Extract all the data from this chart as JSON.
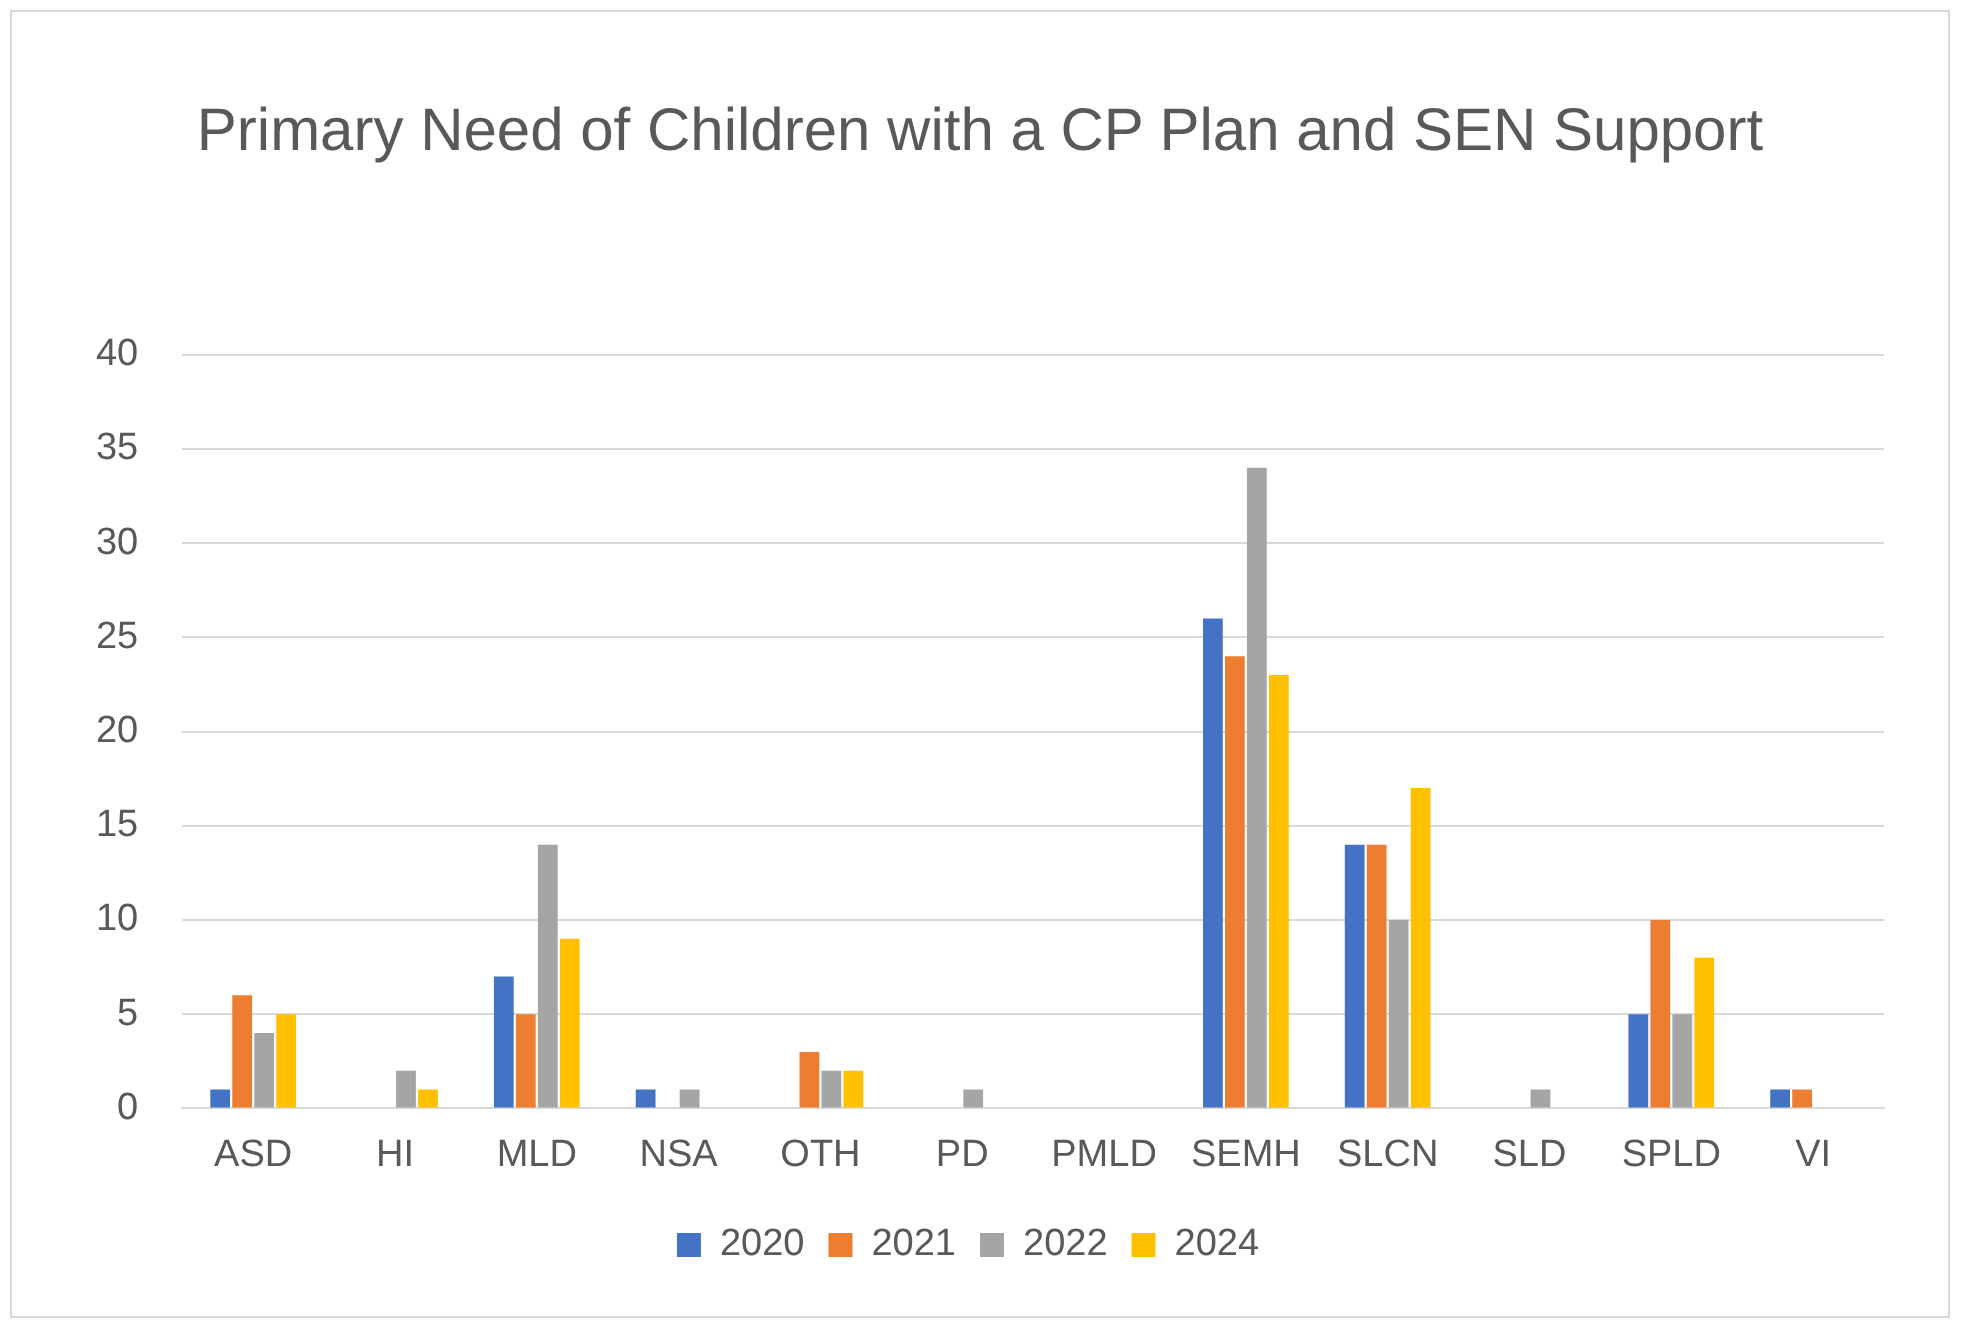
{
  "chart_data": {
    "type": "bar",
    "title": "Primary Need of Children with a CP Plan and SEN Support",
    "categories": [
      "ASD",
      "HI",
      "MLD",
      "NSA",
      "OTH",
      "PD",
      "PMLD",
      "SEMH",
      "SLCN",
      "SLD",
      "SPLD",
      "VI"
    ],
    "series": [
      {
        "name": "2020",
        "color": "#4472c4",
        "values": [
          1,
          0,
          7,
          1,
          0,
          0,
          0,
          26,
          14,
          0,
          5,
          1
        ]
      },
      {
        "name": "2021",
        "color": "#ed7d31",
        "values": [
          6,
          0,
          5,
          0,
          3,
          0,
          0,
          24,
          14,
          0,
          10,
          1
        ]
      },
      {
        "name": "2022",
        "color": "#a5a5a5",
        "values": [
          4,
          2,
          14,
          1,
          2,
          1,
          0,
          34,
          10,
          1,
          5,
          0
        ]
      },
      {
        "name": "2024",
        "color": "#ffc000",
        "values": [
          5,
          1,
          9,
          0,
          2,
          0,
          0,
          23,
          17,
          0,
          8,
          0
        ]
      }
    ],
    "ylim": [
      0,
      40
    ],
    "yticks": [
      0,
      5,
      10,
      15,
      20,
      25,
      30,
      35,
      40
    ],
    "grid": "y",
    "legend": "bottom"
  }
}
